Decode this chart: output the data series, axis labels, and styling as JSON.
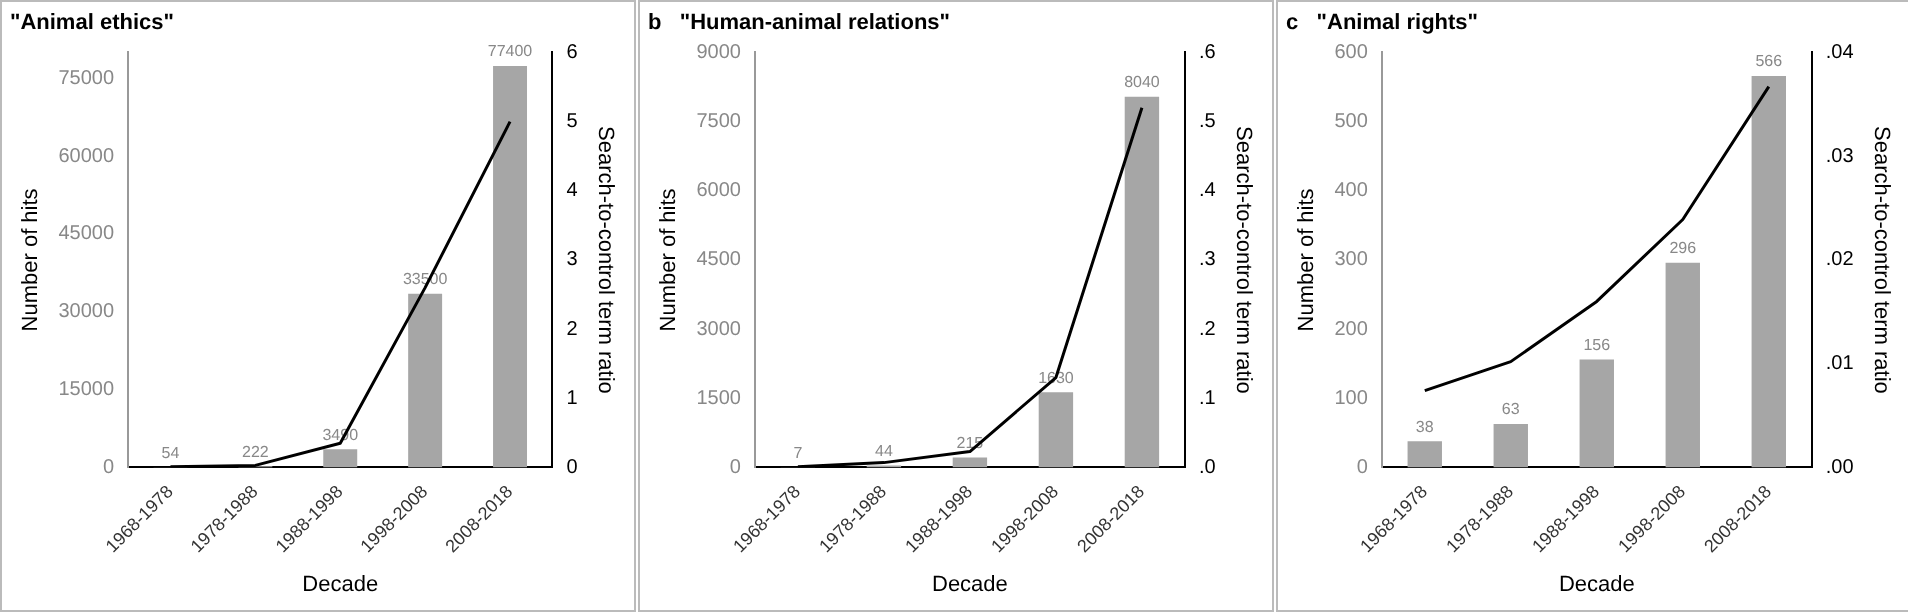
{
  "chart_data": [
    {
      "type": "bar",
      "title": "\"Animal ethics\"",
      "xlabel": "Decade",
      "ylabel": "Number of hits",
      "y2label": "Search-to-control term ratio",
      "categories": [
        "1968-1978",
        "1978-1988",
        "1988-1998",
        "1998-2008",
        "2008-2018"
      ],
      "series": [
        {
          "color": "#a6a6a6",
          "values": [
            54,
            222,
            3490,
            33500,
            77400
          ],
          "value_labels": [
            "54",
            "222",
            "3490",
            "33500",
            "77400"
          ]
        },
        {
          "type": "line",
          "axis": "y2",
          "color": "#000000",
          "values": [
            0.01,
            0.03,
            0.35,
            2.6,
            5.0
          ]
        }
      ],
      "ylim": [
        0,
        80000
      ],
      "yticks": [
        0,
        15000,
        30000,
        45000,
        60000,
        75000
      ],
      "y2lim": [
        0,
        6
      ],
      "y2ticks": [
        0,
        1,
        2,
        3,
        4,
        5,
        6
      ],
      "grid": false,
      "legend": false,
      "marker": "none"
    },
    {
      "type": "bar",
      "title": "b   \"Human-animal relations\"",
      "xlabel": "Decade",
      "ylabel": "Number of hits",
      "y2label": "Search-to-control term ratio",
      "categories": [
        "1968-1978",
        "1978-1988",
        "1988-1998",
        "1998-2008",
        "2008-2018"
      ],
      "series": [
        {
          "color": "#a6a6a6",
          "values": [
            7,
            44,
            215,
            1630,
            8040
          ],
          "value_labels": [
            "7",
            "44",
            "215",
            "1630",
            "8040"
          ]
        },
        {
          "type": "line",
          "axis": "y2",
          "color": "#000000",
          "values": [
            0.001,
            0.007,
            0.023,
            0.13,
            0.52
          ]
        }
      ],
      "ylim": [
        0,
        9000
      ],
      "yticks": [
        0,
        1500,
        3000,
        4500,
        6000,
        7500,
        9000
      ],
      "y2lim": [
        0,
        0.6
      ],
      "y2ticks": [
        {
          "value": 0,
          "label": ".0"
        },
        {
          "value": 0.1,
          "label": ".1"
        },
        {
          "value": 0.2,
          "label": ".2"
        },
        {
          "value": 0.3,
          "label": ".3"
        },
        {
          "value": 0.4,
          "label": ".4"
        },
        {
          "value": 0.5,
          "label": ".5"
        },
        {
          "value": 0.6,
          "label": ".6"
        }
      ],
      "grid": false,
      "legend": false,
      "marker": "none"
    },
    {
      "type": "bar",
      "title": "c   \"Animal rights\"",
      "xlabel": "Decade",
      "ylabel": "Number of hits",
      "y2label": "Search-to-control term ratio",
      "categories": [
        "1968-1978",
        "1978-1988",
        "1988-1998",
        "1998-2008",
        "2008-2018"
      ],
      "series": [
        {
          "color": "#a6a6a6",
          "values": [
            38,
            63,
            156,
            296,
            566
          ],
          "value_labels": [
            "38",
            "63",
            "156",
            "296",
            "566"
          ]
        },
        {
          "type": "line",
          "axis": "y2",
          "color": "#000000",
          "values": [
            0.0074,
            0.0102,
            0.016,
            0.0239,
            0.0367
          ]
        }
      ],
      "ylim": [
        0,
        600
      ],
      "yticks": [
        0,
        100,
        200,
        300,
        400,
        500,
        600
      ],
      "y2lim": [
        0,
        0.04
      ],
      "y2ticks": [
        {
          "value": 0,
          "label": ".00"
        },
        {
          "value": 0.01,
          "label": ".01"
        },
        {
          "value": 0.02,
          "label": ".02"
        },
        {
          "value": 0.03,
          "label": ".03"
        },
        {
          "value": 0.04,
          "label": ".04"
        }
      ],
      "grid": false,
      "legend": false,
      "marker": "none"
    }
  ]
}
